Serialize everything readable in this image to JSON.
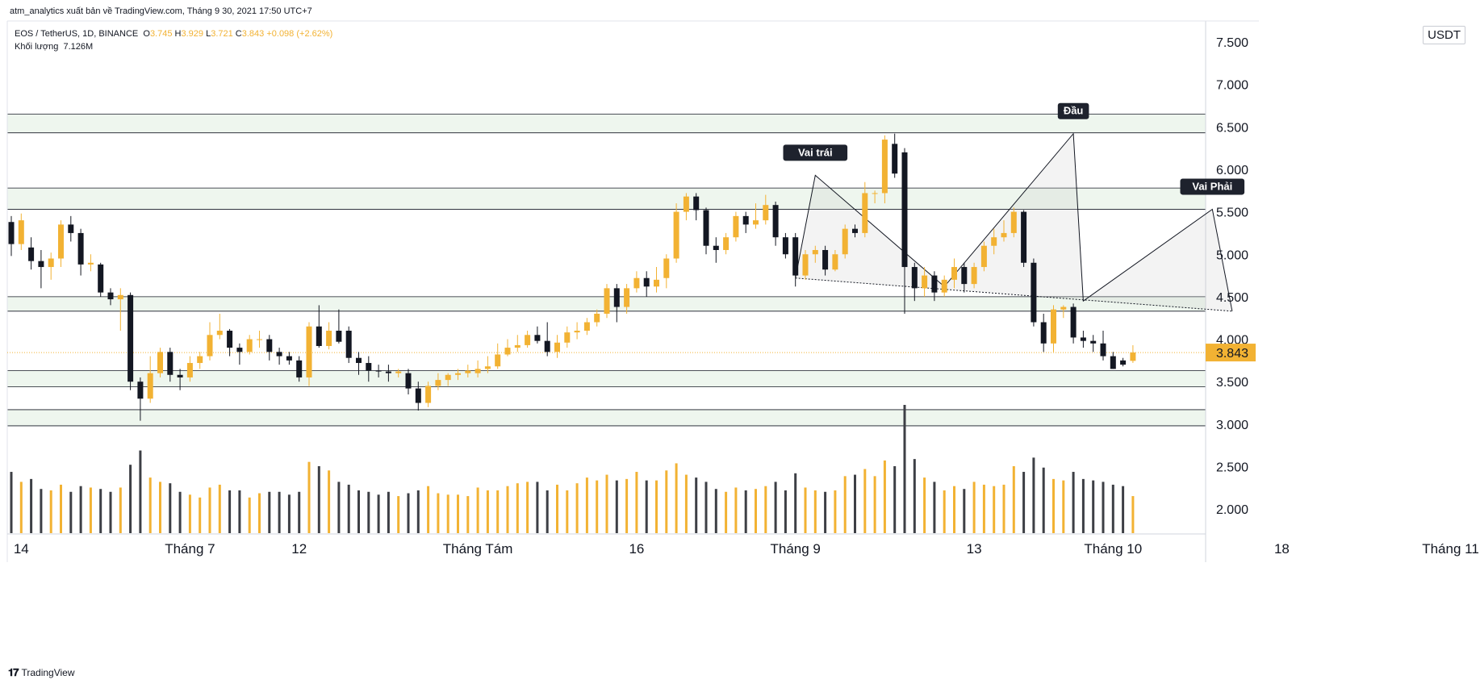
{
  "header": {
    "publisher": "atm_analytics xuất bản về TradingView.com, Tháng 9 30, 2021 17:50 UTC+7"
  },
  "legend": {
    "symbol": "EOS / TetherUS, 1D, BINANCE",
    "o_label": "O",
    "o": "3.745",
    "h_label": "H",
    "h": "3.929",
    "l_label": "L",
    "l": "3.721",
    "c_label": "C",
    "c": "3.843",
    "change": "+0.098 (+2.62%)",
    "volume_label": "Khối lượng",
    "volume": "7.126M"
  },
  "unit_label": "USDT",
  "footer": {
    "brand": "TradingView"
  },
  "colors": {
    "up": "#f2b233",
    "down": "#131722",
    "zone": "#eef6ee",
    "grid_line": "#131722"
  },
  "chart_data": {
    "type": "candlestick",
    "y_ticks": [
      "7.500",
      "7.000",
      "6.500",
      "6.000",
      "5.500",
      "5.000",
      "4.500",
      "4.000",
      "3.500",
      "3.000",
      "2.500",
      "2.000"
    ],
    "y_tick_values": [
      7.5,
      7.0,
      6.5,
      6.0,
      5.5,
      5.0,
      4.5,
      4.0,
      3.5,
      3.0,
      2.5,
      2.0
    ],
    "ylim": [
      1.72,
      7.58
    ],
    "x_ticks": [
      "14",
      "Tháng 7",
      "12",
      "Tháng Tám",
      "16",
      "Tháng 9",
      "13",
      "Tháng 10",
      "18",
      "Tháng 11"
    ],
    "x_tick_days": [
      1,
      18,
      29,
      47,
      63,
      79,
      97,
      111,
      128,
      145
    ],
    "last_price": "3.843",
    "last_value": 3.843,
    "zones": [
      [
        6.43,
        6.65
      ],
      [
        5.53,
        5.78
      ],
      [
        4.33,
        4.5
      ],
      [
        3.44,
        3.63
      ],
      [
        2.98,
        3.17
      ]
    ],
    "annotations": [
      {
        "text": "Vai trái",
        "day": 81,
        "price": 5.93
      },
      {
        "text": "Đầu",
        "day": 107,
        "price": 6.42
      },
      {
        "text": "Vai Phải",
        "day": 121,
        "price": 5.53
      }
    ],
    "pattern": [
      [
        79,
        4.72
      ],
      [
        81,
        5.93
      ],
      [
        94,
        4.62
      ],
      [
        107,
        6.42
      ],
      [
        108,
        4.45
      ],
      [
        121,
        5.53
      ],
      [
        123,
        4.33
      ]
    ],
    "neckline": [
      [
        79,
        4.72
      ],
      [
        123,
        4.33
      ]
    ],
    "candles": [
      [
        0,
        5.38,
        5.12,
        5.45,
        4.98,
        4.3
      ],
      [
        1,
        5.12,
        5.4,
        5.48,
        5.05,
        3.6
      ],
      [
        2,
        5.08,
        4.92,
        5.2,
        4.82,
        3.8
      ],
      [
        3,
        4.92,
        4.85,
        5.05,
        4.6,
        3.1
      ],
      [
        4,
        4.85,
        4.95,
        5.02,
        4.7,
        3.0
      ],
      [
        5,
        4.95,
        5.35,
        5.4,
        4.85,
        3.4
      ],
      [
        6,
        5.35,
        5.25,
        5.45,
        5.15,
        2.9
      ],
      [
        7,
        5.25,
        4.88,
        5.3,
        4.75,
        3.3
      ],
      [
        8,
        4.88,
        4.9,
        5.0,
        4.8,
        3.2
      ],
      [
        9,
        4.88,
        4.55,
        4.9,
        4.5,
        3.1
      ],
      [
        10,
        4.55,
        4.47,
        4.6,
        4.4,
        2.9
      ],
      [
        11,
        4.47,
        4.52,
        4.6,
        4.1,
        3.2
      ],
      [
        12,
        4.52,
        3.5,
        4.55,
        3.4,
        4.8
      ],
      [
        13,
        3.5,
        3.3,
        3.55,
        3.04,
        5.8
      ],
      [
        14,
        3.3,
        3.6,
        3.8,
        3.25,
        3.9
      ],
      [
        15,
        3.6,
        3.85,
        3.9,
        3.55,
        3.6
      ],
      [
        16,
        3.85,
        3.58,
        3.9,
        3.5,
        3.5
      ],
      [
        17,
        3.58,
        3.55,
        3.65,
        3.4,
        2.9
      ],
      [
        18,
        3.55,
        3.72,
        3.8,
        3.5,
        2.7
      ],
      [
        19,
        3.72,
        3.8,
        3.85,
        3.65,
        2.5
      ],
      [
        20,
        3.8,
        4.05,
        4.2,
        3.75,
        3.2
      ],
      [
        21,
        4.05,
        4.1,
        4.3,
        4.0,
        3.4
      ],
      [
        22,
        4.1,
        3.9,
        4.12,
        3.8,
        3.0
      ],
      [
        23,
        3.9,
        3.85,
        3.95,
        3.7,
        3.0
      ],
      [
        24,
        3.85,
        4.0,
        4.05,
        3.82,
        2.5
      ],
      [
        25,
        4.0,
        4.0,
        4.1,
        3.9,
        2.8
      ],
      [
        26,
        4.0,
        3.85,
        4.05,
        3.75,
        2.9
      ],
      [
        27,
        3.85,
        3.8,
        3.9,
        3.7,
        2.9
      ],
      [
        28,
        3.8,
        3.75,
        3.85,
        3.7,
        2.7
      ],
      [
        29,
        3.75,
        3.55,
        3.8,
        3.5,
        2.9
      ],
      [
        30,
        3.55,
        4.15,
        4.2,
        3.45,
        5.0
      ],
      [
        31,
        4.15,
        3.92,
        4.4,
        3.9,
        4.7
      ],
      [
        32,
        3.92,
        4.1,
        4.2,
        3.88,
        4.4
      ],
      [
        33,
        4.1,
        3.97,
        4.35,
        3.95,
        3.6
      ],
      [
        34,
        4.1,
        3.78,
        4.15,
        3.72,
        3.4
      ],
      [
        35,
        3.78,
        3.72,
        3.85,
        3.58,
        3.0
      ],
      [
        36,
        3.72,
        3.63,
        3.8,
        3.5,
        2.9
      ],
      [
        37,
        3.63,
        3.62,
        3.7,
        3.55,
        2.7
      ],
      [
        38,
        3.62,
        3.6,
        3.7,
        3.5,
        2.9
      ],
      [
        39,
        3.6,
        3.62,
        3.65,
        3.55,
        2.6
      ],
      [
        40,
        3.6,
        3.42,
        3.65,
        3.35,
        2.8
      ],
      [
        41,
        3.42,
        3.25,
        3.5,
        3.16,
        3.0
      ],
      [
        42,
        3.25,
        3.45,
        3.5,
        3.2,
        3.3
      ],
      [
        43,
        3.45,
        3.52,
        3.6,
        3.4,
        2.8
      ],
      [
        44,
        3.52,
        3.58,
        3.6,
        3.45,
        2.7
      ],
      [
        45,
        3.58,
        3.6,
        3.65,
        3.52,
        2.7
      ],
      [
        46,
        3.6,
        3.63,
        3.7,
        3.55,
        2.6
      ],
      [
        47,
        3.6,
        3.65,
        3.75,
        3.55,
        3.2
      ],
      [
        48,
        3.65,
        3.68,
        3.8,
        3.6,
        3.0
      ],
      [
        49,
        3.68,
        3.82,
        3.95,
        3.65,
        3.0
      ],
      [
        50,
        3.82,
        3.9,
        4.0,
        3.8,
        3.3
      ],
      [
        51,
        3.9,
        3.93,
        4.05,
        3.85,
        3.5
      ],
      [
        52,
        3.93,
        4.05,
        4.1,
        3.9,
        3.6
      ],
      [
        53,
        4.05,
        3.98,
        4.15,
        3.95,
        3.6
      ],
      [
        54,
        3.98,
        3.85,
        4.2,
        3.8,
        3.0
      ],
      [
        55,
        3.85,
        3.96,
        4.05,
        3.78,
        3.4
      ],
      [
        56,
        3.96,
        4.08,
        4.15,
        3.9,
        3.0
      ],
      [
        57,
        4.08,
        4.1,
        4.2,
        4.0,
        3.5
      ],
      [
        58,
        4.1,
        4.2,
        4.25,
        4.05,
        3.9
      ],
      [
        59,
        4.2,
        4.3,
        4.35,
        4.15,
        3.7
      ],
      [
        60,
        4.3,
        4.6,
        4.65,
        4.25,
        4.1
      ],
      [
        61,
        4.6,
        4.38,
        4.65,
        4.2,
        3.7
      ],
      [
        62,
        4.38,
        4.6,
        4.65,
        4.3,
        3.8
      ],
      [
        63,
        4.6,
        4.72,
        4.8,
        4.55,
        4.3
      ],
      [
        64,
        4.72,
        4.62,
        4.8,
        4.5,
        3.7
      ],
      [
        65,
        4.62,
        4.7,
        4.85,
        4.55,
        3.7
      ],
      [
        66,
        4.72,
        4.95,
        5.0,
        4.6,
        4.4
      ],
      [
        67,
        4.95,
        5.5,
        5.6,
        4.9,
        4.9
      ],
      [
        68,
        5.5,
        5.68,
        5.72,
        5.4,
        4.1
      ],
      [
        69,
        5.68,
        5.52,
        5.72,
        5.4,
        3.9
      ],
      [
        70,
        5.52,
        5.1,
        5.55,
        5.0,
        3.6
      ],
      [
        71,
        5.1,
        5.05,
        5.2,
        4.9,
        3.1
      ],
      [
        72,
        5.05,
        5.2,
        5.25,
        5.0,
        2.9
      ],
      [
        73,
        5.2,
        5.45,
        5.5,
        5.15,
        3.2
      ],
      [
        74,
        5.45,
        5.35,
        5.5,
        5.25,
        3.0
      ],
      [
        75,
        5.35,
        5.4,
        5.6,
        5.3,
        3.1
      ],
      [
        76,
        5.4,
        5.58,
        5.7,
        5.35,
        3.3
      ],
      [
        77,
        5.58,
        5.2,
        5.62,
        5.1,
        3.6
      ],
      [
        78,
        5.2,
        5.0,
        5.25,
        4.95,
        3.0
      ],
      [
        79,
        5.2,
        4.75,
        5.25,
        4.62,
        4.2
      ],
      [
        80,
        4.75,
        5.0,
        5.05,
        4.7,
        3.2
      ],
      [
        81,
        5.0,
        5.05,
        5.1,
        4.9,
        3.0
      ],
      [
        82,
        5.05,
        4.82,
        5.1,
        4.75,
        2.9
      ],
      [
        83,
        4.82,
        5.0,
        5.05,
        4.8,
        3.0
      ],
      [
        84,
        5.0,
        5.3,
        5.35,
        4.95,
        4.0
      ],
      [
        85,
        5.3,
        5.25,
        5.35,
        5.2,
        4.1
      ],
      [
        86,
        5.25,
        5.72,
        5.85,
        5.2,
        4.5
      ],
      [
        87,
        5.72,
        5.72,
        5.75,
        5.6,
        4.0
      ],
      [
        88,
        5.72,
        6.35,
        6.4,
        5.6,
        5.1
      ],
      [
        89,
        6.3,
        5.95,
        6.42,
        5.9,
        4.7
      ],
      [
        90,
        6.2,
        4.85,
        6.25,
        4.3,
        9.0
      ],
      [
        91,
        4.85,
        4.6,
        4.9,
        4.45,
        5.2
      ],
      [
        92,
        4.6,
        4.75,
        4.85,
        4.5,
        3.9
      ],
      [
        93,
        4.75,
        4.55,
        4.8,
        4.45,
        3.6
      ],
      [
        94,
        4.55,
        4.7,
        4.75,
        4.5,
        3.0
      ],
      [
        95,
        4.7,
        4.85,
        4.95,
        4.6,
        3.3
      ],
      [
        96,
        4.85,
        4.65,
        4.9,
        4.55,
        3.1
      ],
      [
        97,
        4.65,
        4.85,
        4.9,
        4.6,
        3.6
      ],
      [
        98,
        4.85,
        5.1,
        5.15,
        4.8,
        3.4
      ],
      [
        99,
        5.1,
        5.2,
        5.3,
        5.0,
        3.3
      ],
      [
        100,
        5.2,
        5.25,
        5.4,
        5.15,
        3.4
      ],
      [
        101,
        5.25,
        5.5,
        5.55,
        5.2,
        4.7
      ],
      [
        102,
        5.5,
        4.9,
        5.52,
        4.85,
        4.3
      ],
      [
        103,
        4.9,
        4.2,
        4.95,
        4.15,
        5.3
      ],
      [
        104,
        4.2,
        3.95,
        4.3,
        3.85,
        4.6
      ],
      [
        105,
        3.95,
        4.35,
        4.4,
        3.85,
        3.8
      ],
      [
        106,
        4.35,
        4.38,
        4.4,
        4.25,
        3.7
      ],
      [
        107,
        4.38,
        4.02,
        4.42,
        3.95,
        4.3
      ],
      [
        108,
        4.02,
        3.98,
        4.1,
        3.9,
        3.8
      ],
      [
        109,
        3.98,
        3.95,
        4.05,
        3.85,
        3.7
      ],
      [
        110,
        3.95,
        3.8,
        4.1,
        3.75,
        3.6
      ],
      [
        111,
        3.8,
        3.65,
        3.85,
        3.65,
        3.4
      ],
      [
        112,
        3.75,
        3.7,
        3.78,
        3.68,
        3.3
      ],
      [
        113,
        3.745,
        3.843,
        3.929,
        3.721,
        2.6
      ]
    ]
  }
}
